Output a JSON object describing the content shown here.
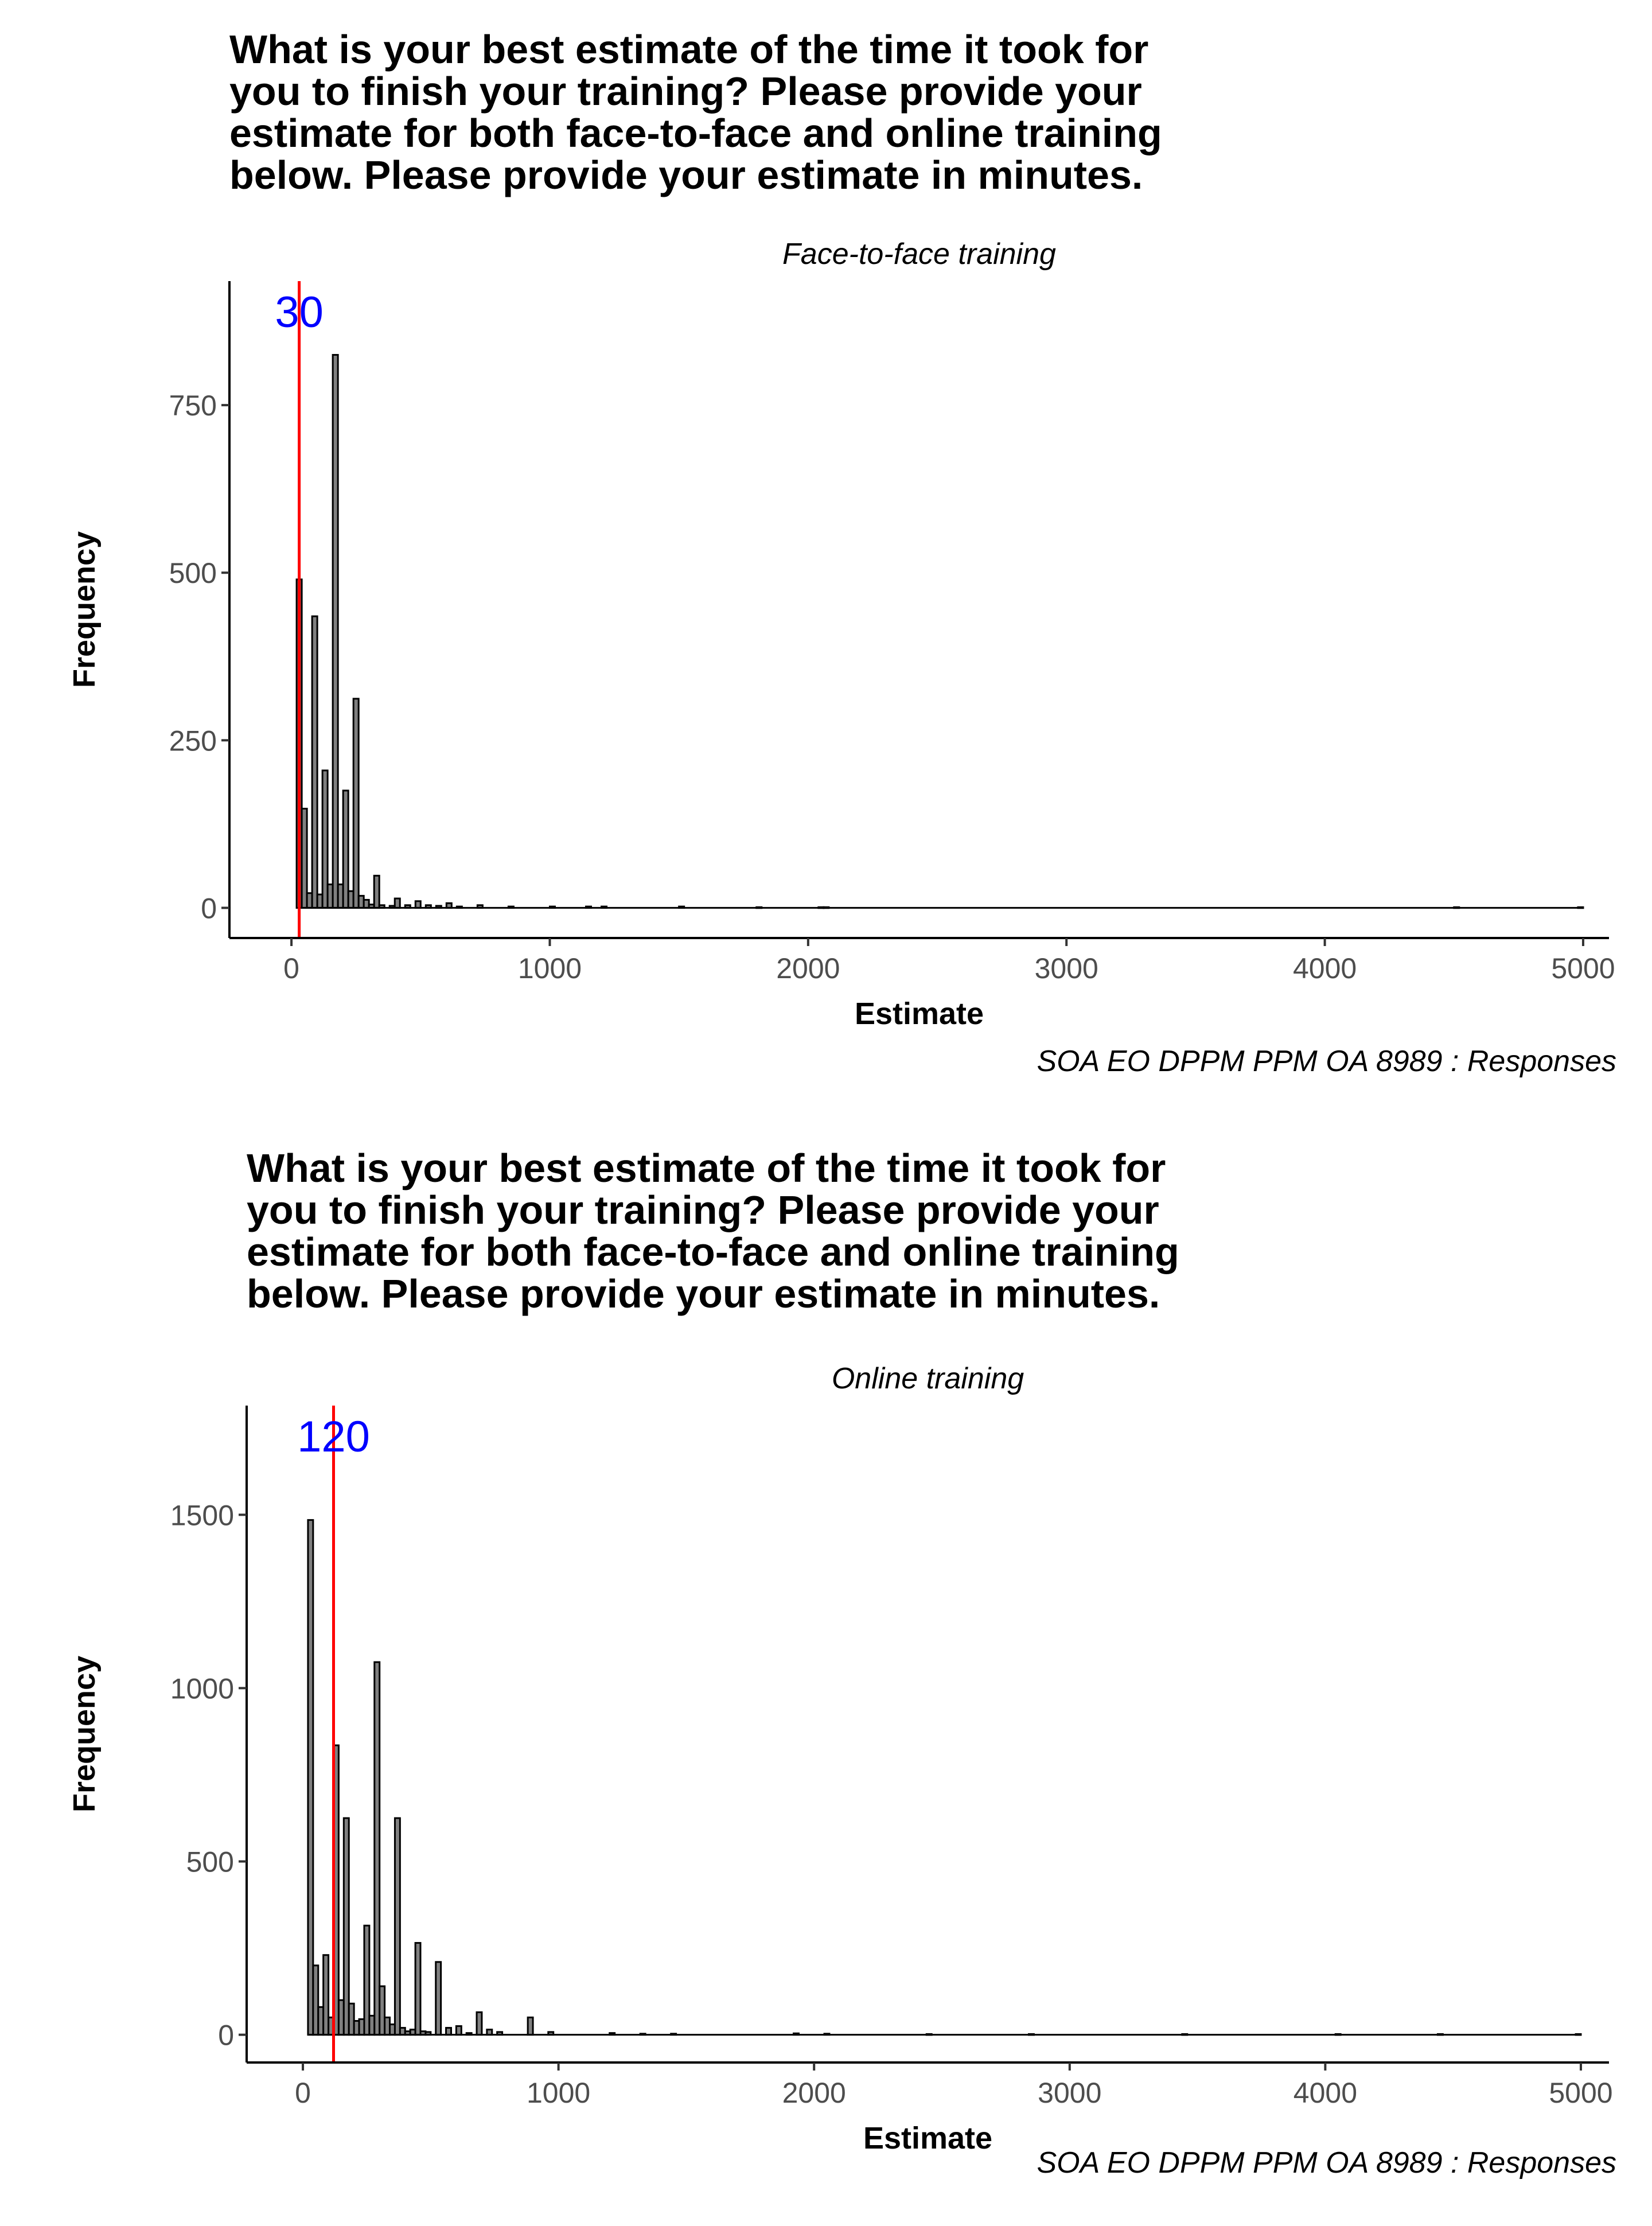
{
  "chart_data": [
    {
      "type": "bar",
      "title": "What is your best estimate of the time it took for\nyou to finish your training? Please provide your\nestimate for both face-to-face and online training\nbelow. Please provide your estimate in minutes.",
      "subtitle": "Face-to-face training",
      "xlabel": "Estimate",
      "ylabel": "Frequency",
      "caption": "SOA EO DPPM PPM OA 8989 : Responses",
      "xlim": [
        -240,
        5100
      ],
      "ylim": [
        -45,
        935
      ],
      "xticks": [
        0,
        1000,
        2000,
        3000,
        4000,
        5000
      ],
      "yticks": [
        0,
        250,
        500,
        750
      ],
      "grid": false,
      "bin_width": 20,
      "bars": [
        {
          "x": 30,
          "y": 490
        },
        {
          "x": 50,
          "y": 148
        },
        {
          "x": 70,
          "y": 22
        },
        {
          "x": 90,
          "y": 435
        },
        {
          "x": 110,
          "y": 20
        },
        {
          "x": 130,
          "y": 205
        },
        {
          "x": 150,
          "y": 35
        },
        {
          "x": 170,
          "y": 825
        },
        {
          "x": 190,
          "y": 35
        },
        {
          "x": 210,
          "y": 175
        },
        {
          "x": 230,
          "y": 25
        },
        {
          "x": 250,
          "y": 312
        },
        {
          "x": 270,
          "y": 18
        },
        {
          "x": 290,
          "y": 12
        },
        {
          "x": 310,
          "y": 5
        },
        {
          "x": 330,
          "y": 48
        },
        {
          "x": 350,
          "y": 4
        },
        {
          "x": 390,
          "y": 3
        },
        {
          "x": 410,
          "y": 14
        },
        {
          "x": 450,
          "y": 4
        },
        {
          "x": 490,
          "y": 10
        },
        {
          "x": 530,
          "y": 4
        },
        {
          "x": 570,
          "y": 3
        },
        {
          "x": 610,
          "y": 7
        },
        {
          "x": 650,
          "y": 2
        },
        {
          "x": 730,
          "y": 4
        },
        {
          "x": 850,
          "y": 2
        },
        {
          "x": 1010,
          "y": 2
        },
        {
          "x": 1150,
          "y": 2
        },
        {
          "x": 1210,
          "y": 2
        },
        {
          "x": 1510,
          "y": 2
        },
        {
          "x": 1810,
          "y": 1
        },
        {
          "x": 2050,
          "y": 1
        },
        {
          "x": 2070,
          "y": 1
        },
        {
          "x": 4510,
          "y": 1
        },
        {
          "x": 4990,
          "y": 1
        }
      ],
      "reference_line": {
        "x": 30,
        "label": "30",
        "color": "#ff0000",
        "label_color": "#0000ff"
      },
      "bar_fill": "#808080",
      "bar_stroke": "#000000"
    },
    {
      "type": "bar",
      "title": "What is your best estimate of the time it took for\nyou to finish your training? Please provide your\nestimate for both face-to-face and online training\nbelow. Please provide your estimate in minutes.",
      "subtitle": "Online training",
      "xlabel": "Estimate",
      "ylabel": "Frequency",
      "caption": "SOA EO DPPM PPM OA 8989 : Responses",
      "xlim": [
        -220,
        5110
      ],
      "ylim": [
        -80,
        1815
      ],
      "xticks": [
        0,
        1000,
        2000,
        3000,
        4000,
        5000
      ],
      "yticks": [
        0,
        500,
        1000,
        1500
      ],
      "grid": false,
      "bin_width": 20,
      "bars": [
        {
          "x": 30,
          "y": 1485
        },
        {
          "x": 50,
          "y": 200
        },
        {
          "x": 70,
          "y": 80
        },
        {
          "x": 90,
          "y": 230
        },
        {
          "x": 110,
          "y": 50
        },
        {
          "x": 130,
          "y": 835
        },
        {
          "x": 150,
          "y": 100
        },
        {
          "x": 170,
          "y": 625
        },
        {
          "x": 190,
          "y": 90
        },
        {
          "x": 210,
          "y": 40
        },
        {
          "x": 230,
          "y": 45
        },
        {
          "x": 250,
          "y": 315
        },
        {
          "x": 270,
          "y": 55
        },
        {
          "x": 290,
          "y": 1075
        },
        {
          "x": 310,
          "y": 140
        },
        {
          "x": 330,
          "y": 50
        },
        {
          "x": 350,
          "y": 30
        },
        {
          "x": 370,
          "y": 625
        },
        {
          "x": 390,
          "y": 20
        },
        {
          "x": 410,
          "y": 10
        },
        {
          "x": 430,
          "y": 15
        },
        {
          "x": 450,
          "y": 265
        },
        {
          "x": 470,
          "y": 10
        },
        {
          "x": 490,
          "y": 8
        },
        {
          "x": 530,
          "y": 210
        },
        {
          "x": 570,
          "y": 20
        },
        {
          "x": 610,
          "y": 25
        },
        {
          "x": 650,
          "y": 5
        },
        {
          "x": 690,
          "y": 65
        },
        {
          "x": 730,
          "y": 15
        },
        {
          "x": 770,
          "y": 8
        },
        {
          "x": 890,
          "y": 50
        },
        {
          "x": 970,
          "y": 8
        },
        {
          "x": 1210,
          "y": 5
        },
        {
          "x": 1330,
          "y": 3
        },
        {
          "x": 1450,
          "y": 3
        },
        {
          "x": 1930,
          "y": 4
        },
        {
          "x": 2050,
          "y": 3
        },
        {
          "x": 2450,
          "y": 2
        },
        {
          "x": 2850,
          "y": 2
        },
        {
          "x": 3450,
          "y": 2
        },
        {
          "x": 4050,
          "y": 2
        },
        {
          "x": 4450,
          "y": 2
        },
        {
          "x": 4990,
          "y": 2
        }
      ],
      "reference_line": {
        "x": 120,
        "label": "120",
        "color": "#ff0000",
        "label_color": "#0000ff"
      },
      "bar_fill": "#808080",
      "bar_stroke": "#000000"
    }
  ]
}
